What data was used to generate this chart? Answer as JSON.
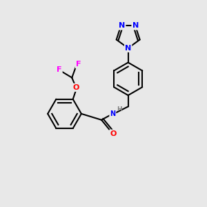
{
  "background_color": "#e8e8e8",
  "bond_color": "#000000",
  "atom_colors": {
    "N": "#0000ff",
    "O": "#ff0000",
    "F": "#ff00ff",
    "H": "#808080",
    "C": "#000000"
  },
  "figsize": [
    3.0,
    3.0
  ],
  "dpi": 100
}
